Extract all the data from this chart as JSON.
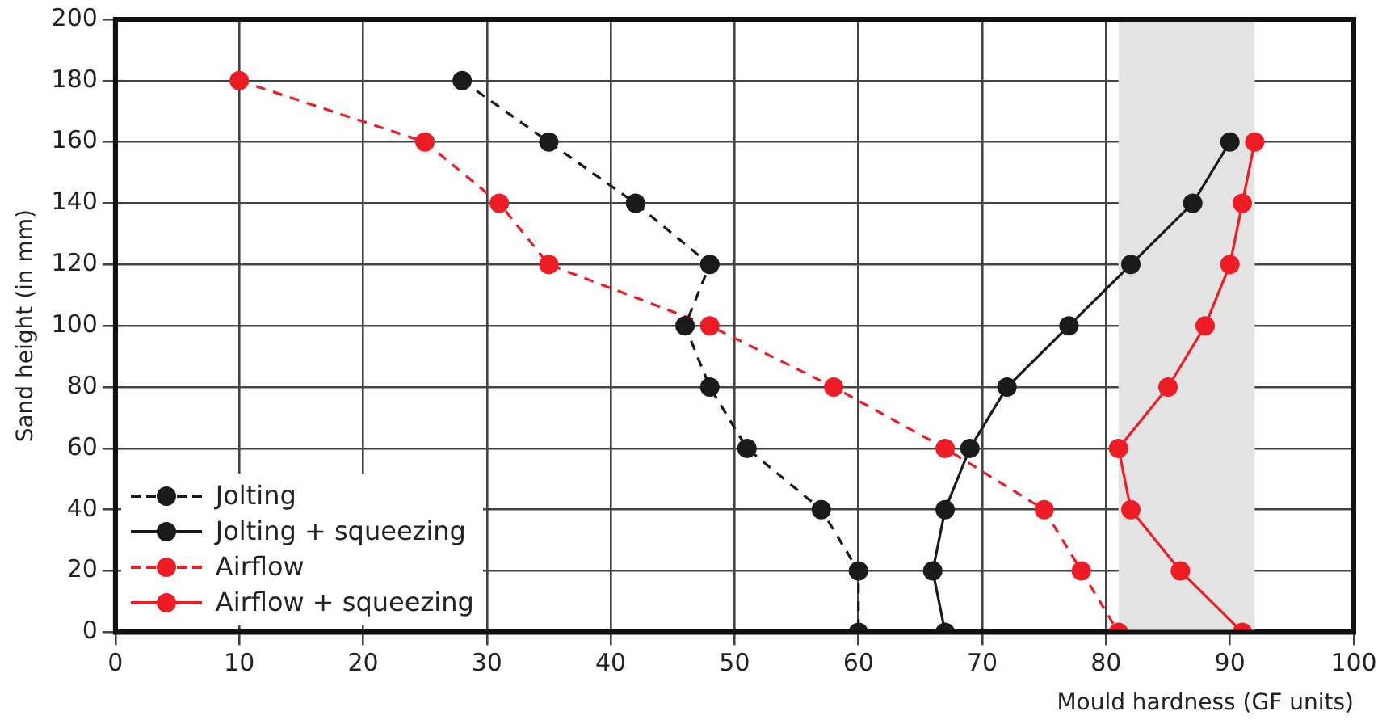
{
  "chart_data": {
    "type": "line",
    "xlabel": "Mould hardness (GF units)",
    "ylabel": "Sand height (in mm)",
    "xlim": [
      0,
      100
    ],
    "xticks": [
      0,
      10,
      20,
      30,
      40,
      50,
      60,
      70,
      80,
      90,
      100
    ],
    "ylim": [
      0,
      200
    ],
    "yticks": [
      0,
      20,
      40,
      60,
      80,
      100,
      120,
      140,
      160,
      180,
      200
    ],
    "grid": true,
    "legend": "bottom left",
    "marker": "circle",
    "bands": [
      {
        "axis": "x",
        "from": 81,
        "to": 92,
        "color": "#e3e3e3"
      }
    ],
    "series": [
      {
        "name": "Jolting",
        "color": "#1a1a1a",
        "line_style": "dashed",
        "x": [
          28,
          35,
          42,
          48,
          46,
          48,
          51,
          57,
          60,
          60
        ],
        "values": [
          180,
          160,
          140,
          120,
          100,
          80,
          60,
          40,
          20,
          0
        ]
      },
      {
        "name": "Jolting + squeezing",
        "color": "#1a1a1a",
        "line_style": "solid",
        "x": [
          90,
          87,
          82,
          77,
          72,
          69,
          67,
          66,
          67
        ],
        "values": [
          160,
          140,
          120,
          100,
          80,
          60,
          40,
          20,
          0
        ]
      },
      {
        "name": "Airflow",
        "color": "#ee1c25",
        "line_style": "dashed",
        "x": [
          10,
          25,
          31,
          35,
          48,
          58,
          67,
          75,
          78,
          81
        ],
        "values": [
          180,
          160,
          140,
          120,
          100,
          80,
          60,
          40,
          20,
          0
        ]
      },
      {
        "name": "Airflow + squeezing",
        "color": "#ee1c25",
        "line_style": "solid",
        "x": [
          92,
          91,
          90,
          88,
          85,
          81,
          82,
          86,
          91
        ],
        "values": [
          160,
          140,
          120,
          100,
          80,
          60,
          40,
          20,
          0
        ]
      }
    ]
  }
}
